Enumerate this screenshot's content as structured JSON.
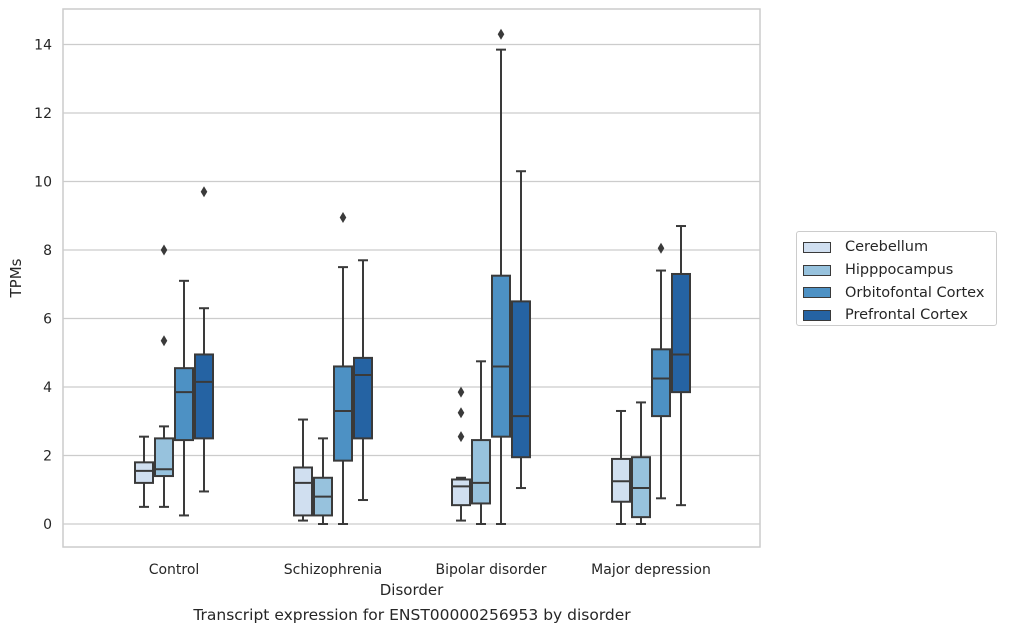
{
  "chart_data": {
    "type": "box",
    "title": "",
    "xlabel": "Disorder",
    "ylabel": "TPMs",
    "caption": "Transcript expression for ENST00000256953 by disorder",
    "ylim": [
      -0.7,
      15.1
    ],
    "yticks": [
      0,
      2,
      4,
      6,
      8,
      10,
      12,
      14
    ],
    "grid": true,
    "legend_position": "right",
    "categories": [
      "Control",
      "Schizophrenia",
      "Bipolar disorder",
      "Major depression"
    ],
    "series": [
      {
        "name": "Cerebellum",
        "color": "#d0dff0",
        "boxes": [
          {
            "whislo": 0.5,
            "q1": 1.2,
            "med": 1.55,
            "q3": 1.8,
            "whishi": 2.55,
            "fliers": []
          },
          {
            "whislo": 0.1,
            "q1": 0.25,
            "med": 1.2,
            "q3": 1.65,
            "whishi": 3.05,
            "fliers": []
          },
          {
            "whislo": 0.1,
            "q1": 0.55,
            "med": 1.1,
            "q3": 1.3,
            "whishi": 1.35,
            "fliers": [
              2.55,
              3.25,
              3.85
            ]
          },
          {
            "whislo": 0.0,
            "q1": 0.65,
            "med": 1.25,
            "q3": 1.9,
            "whishi": 3.3,
            "fliers": []
          }
        ]
      },
      {
        "name": "Hipppocampus",
        "color": "#97c2dd",
        "boxes": [
          {
            "whislo": 0.5,
            "q1": 1.4,
            "med": 1.6,
            "q3": 2.5,
            "whishi": 2.85,
            "fliers": [
              5.35,
              8.0
            ]
          },
          {
            "whislo": 0.0,
            "q1": 0.25,
            "med": 0.8,
            "q3": 1.35,
            "whishi": 2.5,
            "fliers": []
          },
          {
            "whislo": 0.0,
            "q1": 0.6,
            "med": 1.2,
            "q3": 2.45,
            "whishi": 4.75,
            "fliers": []
          },
          {
            "whislo": 0.0,
            "q1": 0.2,
            "med": 1.05,
            "q3": 1.95,
            "whishi": 3.55,
            "fliers": []
          }
        ]
      },
      {
        "name": "Orbitofontal Cortex",
        "color": "#4d91c4",
        "boxes": [
          {
            "whislo": 0.25,
            "q1": 2.45,
            "med": 3.85,
            "q3": 4.55,
            "whishi": 7.1,
            "fliers": []
          },
          {
            "whislo": 0.0,
            "q1": 1.85,
            "med": 3.3,
            "q3": 4.6,
            "whishi": 7.5,
            "fliers": [
              8.95
            ]
          },
          {
            "whislo": 0.0,
            "q1": 2.55,
            "med": 4.6,
            "q3": 7.25,
            "whishi": 13.85,
            "fliers": [
              14.3
            ]
          },
          {
            "whislo": 0.75,
            "q1": 3.15,
            "med": 4.25,
            "q3": 5.1,
            "whishi": 7.4,
            "fliers": [
              8.05
            ]
          }
        ]
      },
      {
        "name": "Prefrontal Cortex",
        "color": "#2563a3",
        "boxes": [
          {
            "whislo": 0.95,
            "q1": 2.5,
            "med": 4.15,
            "q3": 4.95,
            "whishi": 6.3,
            "fliers": [
              9.7
            ]
          },
          {
            "whislo": 0.7,
            "q1": 2.5,
            "med": 4.35,
            "q3": 4.85,
            "whishi": 7.7,
            "fliers": []
          },
          {
            "whislo": 1.05,
            "q1": 1.95,
            "med": 3.15,
            "q3": 6.5,
            "whishi": 10.3,
            "fliers": []
          },
          {
            "whislo": 0.55,
            "q1": 3.85,
            "med": 4.95,
            "q3": 7.3,
            "whishi": 8.7,
            "fliers": []
          }
        ]
      }
    ]
  }
}
